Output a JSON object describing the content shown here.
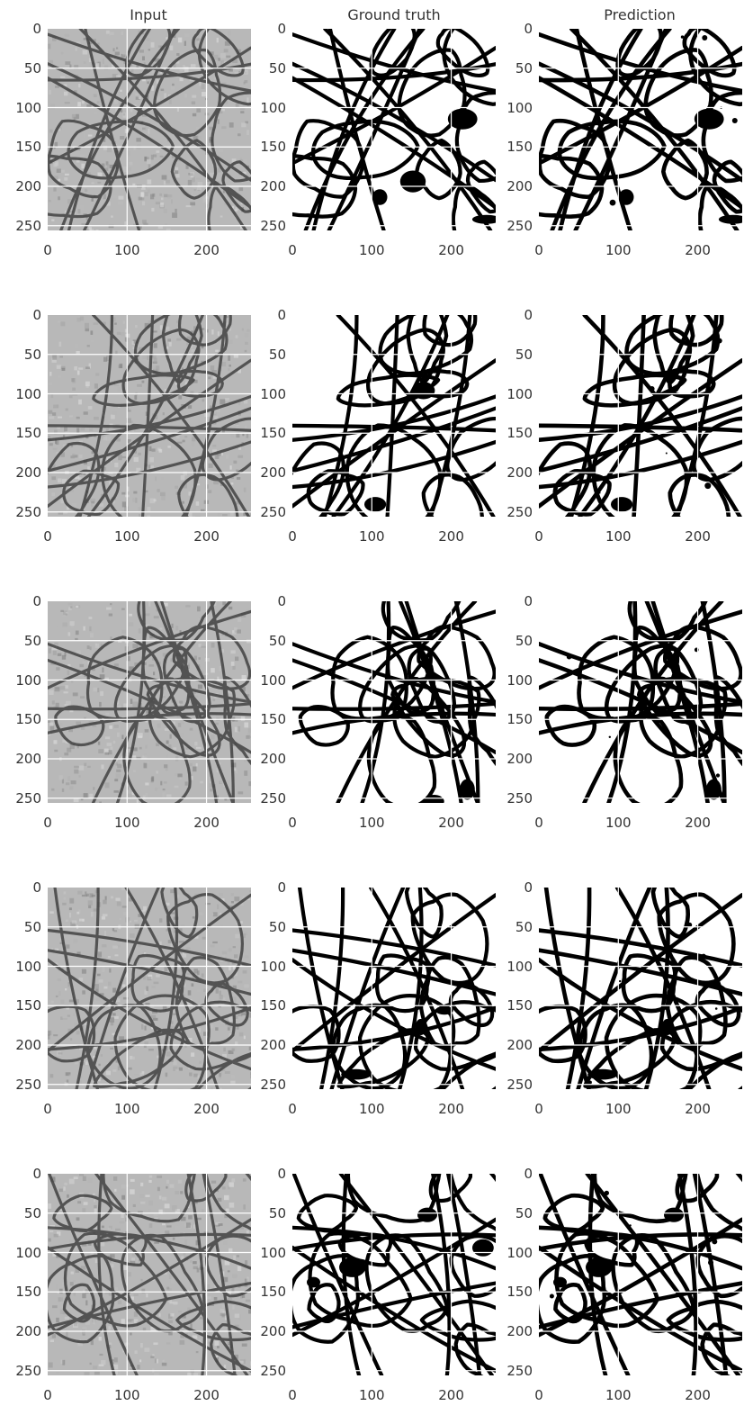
{
  "figure": {
    "column_titles": [
      "Input",
      "Ground truth",
      "Prediction"
    ],
    "rows": 5,
    "columns": [
      "input",
      "ground-truth",
      "prediction"
    ],
    "x_ticks": [
      "0",
      "100",
      "200"
    ],
    "y_ticks": [
      "0",
      "50",
      "100",
      "150",
      "200",
      "250"
    ],
    "image_size": 256,
    "colors": {
      "membrane": "#000000",
      "background": "#ffffff",
      "input_bg": "#b8b8b8",
      "input_membrane": "#3a3a3a",
      "grid": "#ffffff",
      "text": "#333333"
    }
  }
}
